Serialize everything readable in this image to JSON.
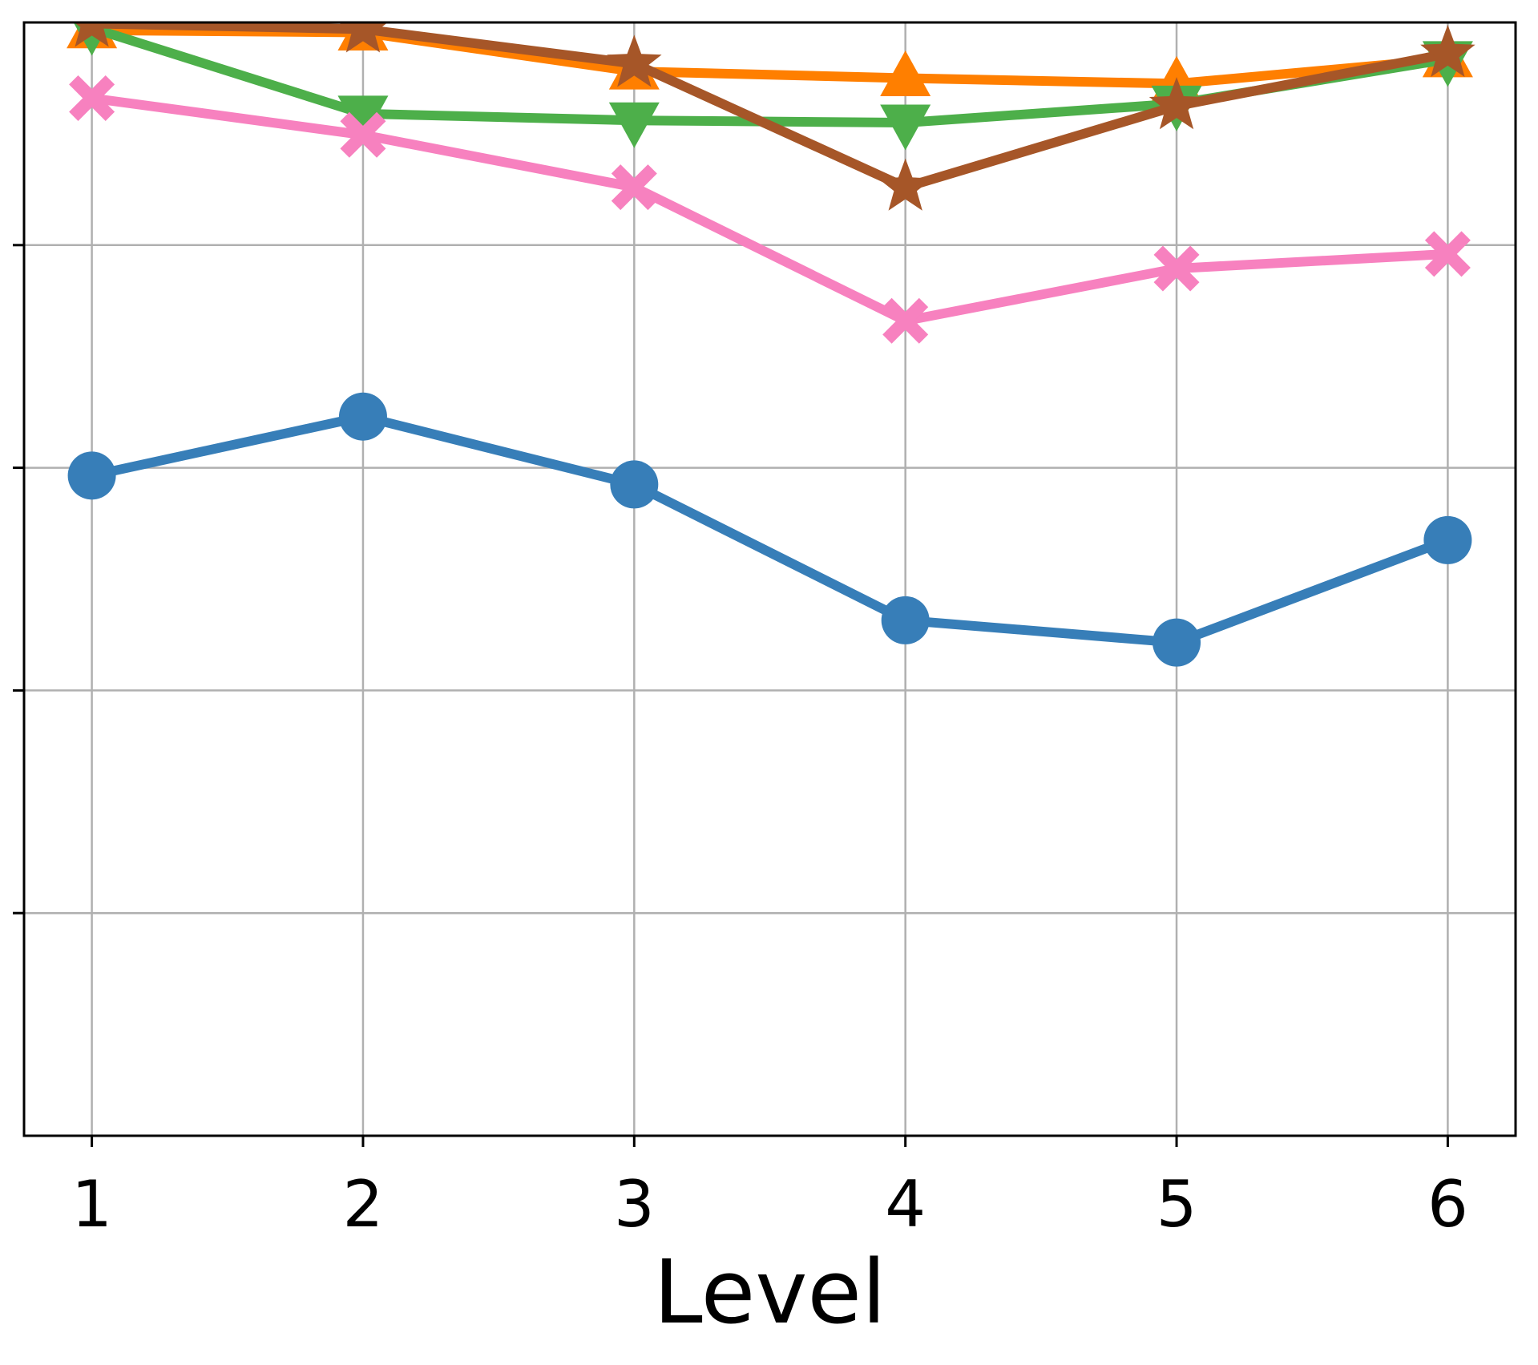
{
  "chart_data": {
    "type": "line",
    "title": "",
    "xlabel": "Level",
    "ylabel": "",
    "x": [
      1,
      2,
      3,
      4,
      5,
      6
    ],
    "xlim": [
      0.75,
      6.25
    ],
    "ylim": [
      0,
      1
    ],
    "grid": true,
    "legend": "none",
    "series": [
      {
        "color": "#377eb8",
        "marker": "circle",
        "values": [
          0.593,
          0.646,
          0.585,
          0.463,
          0.443,
          0.535
        ]
      },
      {
        "color": "#ff7f00",
        "marker": "triangle-up",
        "values": [
          0.993,
          0.991,
          0.956,
          0.95,
          0.945,
          0.967
        ]
      },
      {
        "color": "#4daf4a",
        "marker": "triangle-down",
        "values": [
          0.995,
          0.918,
          0.912,
          0.91,
          0.927,
          0.967
        ]
      },
      {
        "color": "#f781bf",
        "marker": "x",
        "values": [
          0.932,
          0.899,
          0.852,
          0.732,
          0.779,
          0.792
        ]
      },
      {
        "color": "#a65628",
        "marker": "star",
        "values": [
          0.999,
          0.994,
          0.963,
          0.852,
          0.925,
          0.972
        ]
      }
    ]
  }
}
